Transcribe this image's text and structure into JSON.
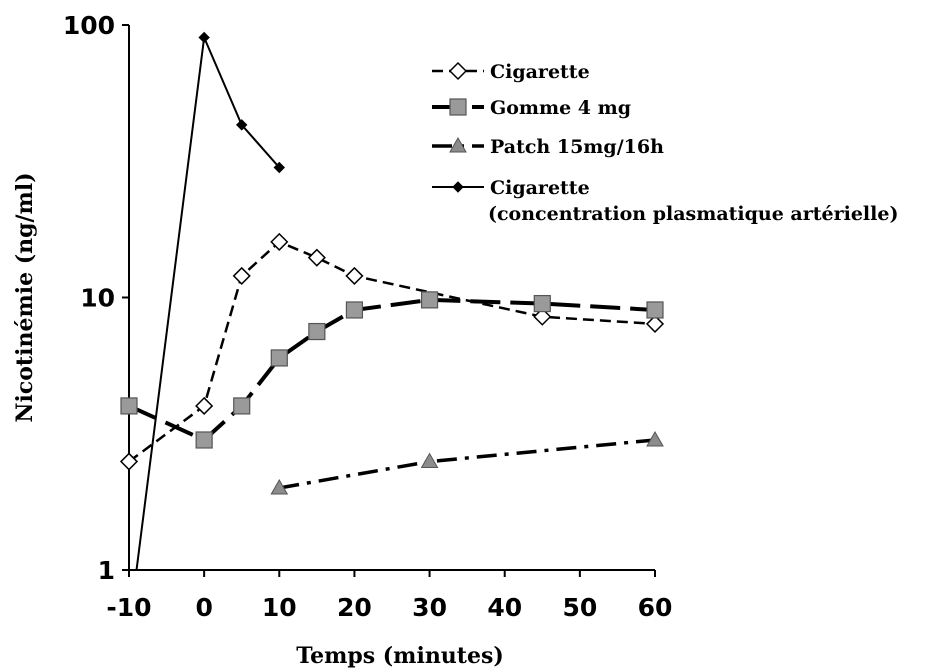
{
  "chart_data": {
    "type": "line",
    "xlabel": "Temps (minutes)",
    "ylabel": "Nicotinémie (ng/ml)",
    "x_ticks": [
      "-10",
      "0",
      "10",
      "20",
      "30",
      "40",
      "50",
      "60"
    ],
    "y_ticks": [
      "1",
      "10",
      "100"
    ],
    "xlim": [
      -10,
      60
    ],
    "ylim": [
      1,
      100
    ],
    "y_scale": "log",
    "grid": false,
    "legend_position": "top-right",
    "series": [
      {
        "name": "Cigarette",
        "marker": "diamond-open",
        "line": "dashed",
        "color": "#000000",
        "points": [
          [
            -10,
            2.5
          ],
          [
            0,
            4
          ],
          [
            5,
            12
          ],
          [
            10,
            16
          ],
          [
            15,
            14
          ],
          [
            20,
            12
          ],
          [
            45,
            8.5
          ],
          [
            60,
            8
          ]
        ]
      },
      {
        "name": "Gomme 4 mg",
        "marker": "square-gray",
        "line": "long-dashed",
        "color": "#000000",
        "points": [
          [
            -10,
            4
          ],
          [
            0,
            3
          ],
          [
            5,
            4
          ],
          [
            10,
            6
          ],
          [
            15,
            7.5
          ],
          [
            20,
            9
          ],
          [
            30,
            9.8
          ],
          [
            45,
            9.5
          ],
          [
            60,
            9
          ]
        ]
      },
      {
        "name": "Patch 15mg/16h",
        "marker": "triangle-gray",
        "line": "dash-dot",
        "color": "#000000",
        "points": [
          [
            10,
            2
          ],
          [
            30,
            2.5
          ],
          [
            60,
            3
          ]
        ]
      },
      {
        "name": "Cigarette\n(concentration plasmatique artérielle)",
        "legend_lines": [
          "Cigarette",
          "(concentration plasmatique artérielle)"
        ],
        "marker": "diamond-filled-small",
        "line": "solid",
        "color": "#000000",
        "points": [
          [
            -9,
            1
          ],
          [
            0,
            90
          ],
          [
            5,
            43
          ],
          [
            10,
            30
          ]
        ]
      }
    ]
  }
}
